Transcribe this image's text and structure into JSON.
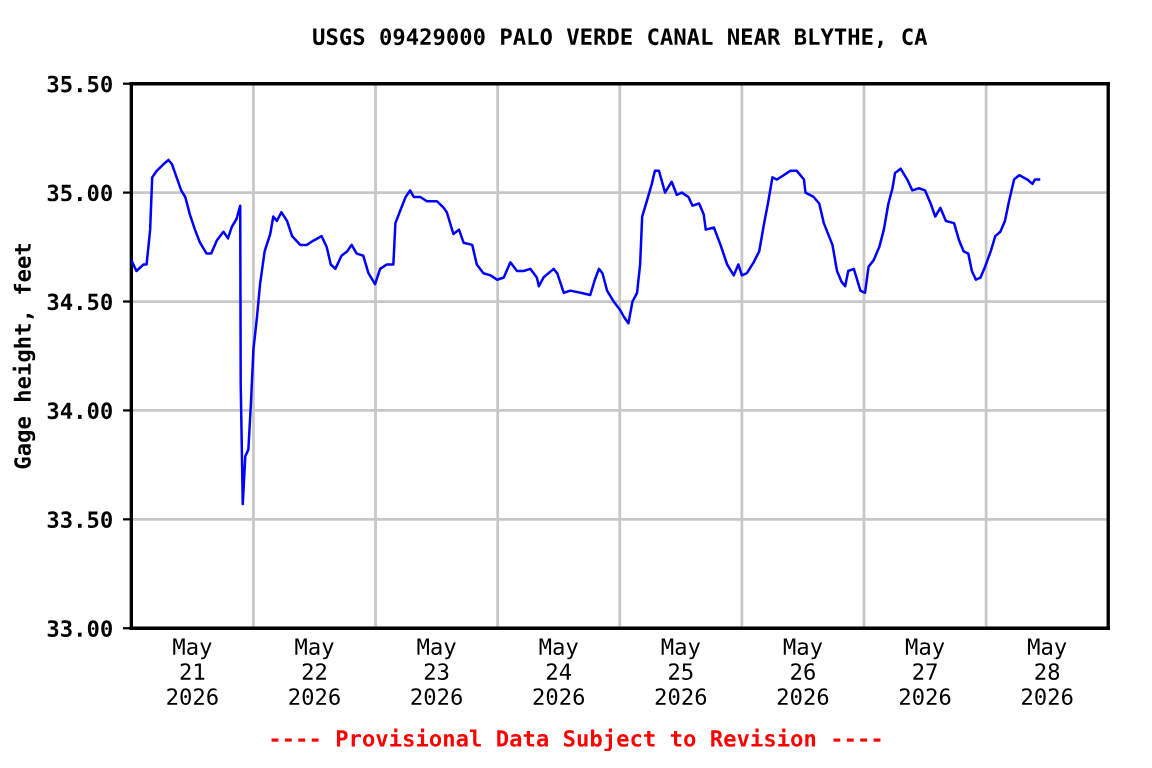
{
  "chart_data": {
    "type": "line",
    "title": "USGS 09429000 PALO VERDE CANAL NEAR BLYTHE, CA",
    "ylabel": "Gage height, feet",
    "annotations": [
      "---- Provisional Data Subject to Revision ----"
    ],
    "grid": true,
    "marker": "none",
    "line_style": "solid",
    "xlim": [
      "2026-05-21T00:00",
      "2026-05-29T00:00"
    ],
    "xticks": [
      {
        "value": "2026-05-21T00:00",
        "label": null
      },
      {
        "value": "2026-05-22T00:00",
        "label": null
      },
      {
        "value": "2026-05-23T00:00",
        "label": null
      },
      {
        "value": "2026-05-24T00:00",
        "label": null
      },
      {
        "value": "2026-05-25T00:00",
        "label": null
      },
      {
        "value": "2026-05-26T00:00",
        "label": null
      },
      {
        "value": "2026-05-27T00:00",
        "label": null
      },
      {
        "value": "2026-05-28T00:00",
        "label": null
      },
      {
        "value": "2026-05-29T00:00",
        "label": null
      },
      {
        "value": "2026-05-21T12:00",
        "label": "May\n21\n2026"
      },
      {
        "value": "2026-05-22T12:00",
        "label": "May\n22\n2026"
      },
      {
        "value": "2026-05-23T12:00",
        "label": "May\n23\n2026"
      },
      {
        "value": "2026-05-24T12:00",
        "label": "May\n24\n2026"
      },
      {
        "value": "2026-05-25T12:00",
        "label": "May\n25\n2026"
      },
      {
        "value": "2026-05-26T12:00",
        "label": "May\n26\n2026"
      },
      {
        "value": "2026-05-27T12:00",
        "label": "May\n27\n2026"
      },
      {
        "value": "2026-05-28T12:00",
        "label": "May\n28\n2026"
      }
    ],
    "ylim": [
      33.0,
      35.5
    ],
    "yticks": [
      {
        "value": 33.0,
        "label": "33.00"
      },
      {
        "value": 33.5,
        "label": "33.50"
      },
      {
        "value": 34.0,
        "label": "34.00"
      },
      {
        "value": 34.5,
        "label": "34.50"
      },
      {
        "value": 35.0,
        "label": "35.00"
      },
      {
        "value": 35.5,
        "label": "35.50"
      }
    ],
    "series": [
      {
        "color": "#0000ff",
        "x": [
          "2026-05-21T00:00",
          "2026-05-21T01:00",
          "2026-05-21T02:24",
          "2026-05-21T03:00",
          "2026-05-21T03:42",
          "2026-05-21T04:06",
          "2026-05-21T05:00",
          "2026-05-21T06:18",
          "2026-05-21T07:18",
          "2026-05-21T08:00",
          "2026-05-21T08:54",
          "2026-05-21T09:48",
          "2026-05-21T10:36",
          "2026-05-21T11:30",
          "2026-05-21T12:30",
          "2026-05-21T13:30",
          "2026-05-21T14:48",
          "2026-05-21T15:42",
          "2026-05-21T16:48",
          "2026-05-21T18:06",
          "2026-05-21T19:00",
          "2026-05-21T19:42",
          "2026-05-21T20:42",
          "2026-05-21T21:24",
          "2026-05-21T21:30",
          "2026-05-21T21:54",
          "2026-05-21T22:24",
          "2026-05-21T23:00",
          "2026-05-21T23:30",
          "2026-05-22T00:00",
          "2026-05-22T00:42",
          "2026-05-22T01:18",
          "2026-05-22T02:12",
          "2026-05-22T03:18",
          "2026-05-22T03:54",
          "2026-05-22T04:36",
          "2026-05-22T05:30",
          "2026-05-22T06:36",
          "2026-05-22T07:36",
          "2026-05-22T09:12",
          "2026-05-22T10:30",
          "2026-05-22T11:48",
          "2026-05-22T13:24",
          "2026-05-22T14:24",
          "2026-05-22T15:12",
          "2026-05-22T16:06",
          "2026-05-22T17:18",
          "2026-05-22T18:24",
          "2026-05-22T19:18",
          "2026-05-22T20:18",
          "2026-05-22T21:36",
          "2026-05-22T22:36",
          "2026-05-22T23:54",
          "2026-05-23T00:54",
          "2026-05-23T02:12",
          "2026-05-23T03:30",
          "2026-05-23T03:54",
          "2026-05-23T04:54",
          "2026-05-23T05:54",
          "2026-05-23T06:48",
          "2026-05-23T07:30",
          "2026-05-23T08:48",
          "2026-05-23T10:06",
          "2026-05-23T12:06",
          "2026-05-23T13:24",
          "2026-05-23T14:00",
          "2026-05-23T15:18",
          "2026-05-23T16:24",
          "2026-05-23T17:18",
          "2026-05-23T19:00",
          "2026-05-23T19:54",
          "2026-05-23T21:12",
          "2026-05-23T22:36",
          "2026-05-23T23:54",
          "2026-05-24T01:12",
          "2026-05-24T02:30",
          "2026-05-24T03:48",
          "2026-05-24T05:06",
          "2026-05-24T06:24",
          "2026-05-24T07:42",
          "2026-05-24T08:06",
          "2026-05-24T09:00",
          "2026-05-24T11:00",
          "2026-05-24T11:42",
          "2026-05-24T13:00",
          "2026-05-24T14:18",
          "2026-05-24T16:18",
          "2026-05-24T18:12",
          "2026-05-24T19:06",
          "2026-05-24T19:54",
          "2026-05-24T20:36",
          "2026-05-24T21:30",
          "2026-05-24T22:48",
          "2026-05-25T00:06",
          "2026-05-25T00:48",
          "2026-05-25T01:42",
          "2026-05-25T02:30",
          "2026-05-25T03:24",
          "2026-05-25T04:00",
          "2026-05-25T04:24",
          "2026-05-25T05:18",
          "2026-05-25T06:18",
          "2026-05-25T06:54",
          "2026-05-25T07:42",
          "2026-05-25T08:54",
          "2026-05-25T10:12",
          "2026-05-25T11:12",
          "2026-05-25T12:12",
          "2026-05-25T13:30",
          "2026-05-25T14:18",
          "2026-05-25T15:36",
          "2026-05-25T16:30",
          "2026-05-25T16:54",
          "2026-05-25T18:30",
          "2026-05-25T19:48",
          "2026-05-25T21:06",
          "2026-05-25T22:24",
          "2026-05-25T23:18",
          "2026-05-26T00:00",
          "2026-05-26T01:00",
          "2026-05-26T02:18",
          "2026-05-26T03:24",
          "2026-05-26T04:18",
          "2026-05-26T05:12",
          "2026-05-26T06:00",
          "2026-05-26T06:54",
          "2026-05-26T08:12",
          "2026-05-26T09:30",
          "2026-05-26T10:48",
          "2026-05-26T12:12",
          "2026-05-26T12:30",
          "2026-05-26T14:06",
          "2026-05-26T15:12",
          "2026-05-26T16:06",
          "2026-05-26T17:48",
          "2026-05-26T18:42",
          "2026-05-26T19:36",
          "2026-05-26T20:18",
          "2026-05-26T20:54",
          "2026-05-26T22:00",
          "2026-05-26T23:18",
          "2026-05-27T00:12",
          "2026-05-27T00:54",
          "2026-05-27T01:54",
          "2026-05-27T03:00",
          "2026-05-27T03:54",
          "2026-05-27T04:48",
          "2026-05-27T05:36",
          "2026-05-27T06:06",
          "2026-05-27T07:12",
          "2026-05-27T08:30",
          "2026-05-27T09:30",
          "2026-05-27T10:48",
          "2026-05-27T12:00",
          "2026-05-27T13:06",
          "2026-05-27T14:00",
          "2026-05-27T15:00",
          "2026-05-27T16:06",
          "2026-05-27T17:42",
          "2026-05-27T18:42",
          "2026-05-27T19:36",
          "2026-05-27T20:30",
          "2026-05-27T21:12",
          "2026-05-27T22:00",
          "2026-05-27T22:54",
          "2026-05-27T23:48",
          "2026-05-28T00:54",
          "2026-05-28T01:48",
          "2026-05-28T02:48",
          "2026-05-28T03:42",
          "2026-05-28T04:30",
          "2026-05-28T05:30",
          "2026-05-28T06:30",
          "2026-05-28T08:06",
          "2026-05-28T09:06",
          "2026-05-28T09:36",
          "2026-05-28T10:24"
        ],
        "values": [
          34.69,
          34.64,
          34.67,
          34.67,
          34.83,
          35.07,
          35.1,
          35.13,
          35.15,
          35.13,
          35.07,
          35.01,
          34.98,
          34.9,
          34.83,
          34.77,
          34.72,
          34.72,
          34.78,
          34.82,
          34.79,
          34.84,
          34.88,
          34.94,
          34.12,
          33.57,
          33.79,
          33.82,
          34.03,
          34.28,
          34.43,
          34.58,
          34.73,
          34.81,
          34.89,
          34.87,
          34.91,
          34.87,
          34.8,
          34.76,
          34.76,
          34.78,
          34.8,
          34.75,
          34.67,
          34.65,
          34.71,
          34.73,
          34.76,
          34.72,
          34.71,
          34.63,
          34.58,
          34.65,
          34.67,
          34.67,
          34.86,
          34.92,
          34.98,
          35.01,
          34.98,
          34.98,
          34.96,
          34.96,
          34.93,
          34.91,
          34.81,
          34.83,
          34.77,
          34.76,
          34.67,
          34.63,
          34.62,
          34.6,
          34.61,
          34.68,
          34.64,
          34.64,
          34.65,
          34.61,
          34.57,
          34.61,
          34.65,
          34.63,
          34.54,
          34.55,
          34.54,
          34.53,
          34.6,
          34.65,
          34.63,
          34.55,
          34.5,
          34.46,
          34.43,
          34.4,
          34.5,
          34.54,
          34.67,
          34.89,
          34.96,
          35.04,
          35.1,
          35.1,
          35.0,
          35.05,
          34.99,
          35.0,
          34.98,
          34.94,
          34.95,
          34.9,
          34.83,
          34.84,
          34.76,
          34.67,
          34.62,
          34.67,
          34.62,
          34.63,
          34.68,
          34.73,
          34.85,
          34.96,
          35.07,
          35.06,
          35.08,
          35.1,
          35.1,
          35.06,
          35.0,
          34.98,
          34.95,
          34.86,
          34.76,
          34.64,
          34.59,
          34.57,
          34.64,
          34.65,
          34.55,
          34.54,
          34.66,
          34.69,
          34.75,
          34.83,
          34.95,
          35.02,
          35.09,
          35.11,
          35.06,
          35.01,
          35.02,
          35.01,
          34.95,
          34.89,
          34.93,
          34.87,
          34.86,
          34.78,
          34.73,
          34.72,
          34.64,
          34.6,
          34.61,
          34.66,
          34.73,
          34.8,
          34.82,
          34.87,
          34.96,
          35.06,
          35.08,
          35.06,
          35.04,
          35.06,
          35.06
        ]
      }
    ]
  }
}
